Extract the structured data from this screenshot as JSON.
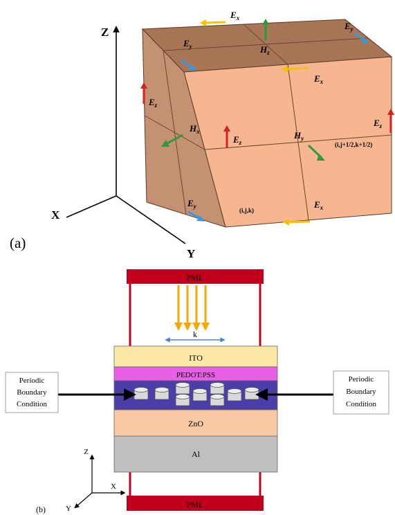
{
  "panel_a": {
    "label": "(a)",
    "axes": {
      "x": "X",
      "y": "Y",
      "z": "Z"
    },
    "fields": {
      "ex": "E",
      "ex_sub": "x",
      "ey": "E",
      "ey_sub": "y",
      "ez": "E",
      "ez_sub": "z",
      "hx": "H",
      "hx_sub": "x",
      "hy": "H",
      "hy_sub": "y",
      "hz": "H",
      "hz_sub": "z"
    },
    "index_origin": "(i,j,k)",
    "index_half": "(i,j+1/2,k+1/2)",
    "colors": {
      "cube_front": "#f6b690",
      "cube_side": "#c49272",
      "cube_top": "#a87656",
      "ex_arrow": "#f2c400",
      "ey_arrow": "#3a9ad9",
      "ez_arrow": "#d42020",
      "h_arrow": "#2e9a3e"
    }
  },
  "panel_b": {
    "label": "(b)",
    "pml_top": "PML",
    "pml_bottom": "PML",
    "wave_vector": "k",
    "layers": [
      {
        "name": "ITO",
        "color": "#fde9a6"
      },
      {
        "name": "PEDOT:PSS",
        "color": "#e85ee6"
      },
      {
        "name": "",
        "color": "#4a3fa8"
      },
      {
        "name": "ZnO",
        "color": "#f9c9a3"
      },
      {
        "name": "Al",
        "color": "#bfbfbf"
      }
    ],
    "boundary_left": [
      "Periodic",
      "Boundary",
      "Condition"
    ],
    "boundary_right": [
      "Periodic",
      "Boundary",
      "Condition"
    ],
    "axes": {
      "x": "X",
      "y": "Y",
      "z": "Z"
    },
    "colors": {
      "pml": "#c0001c",
      "frame": "#c0001c",
      "incident": "#f5a800",
      "k_arrow": "#4a86c6"
    }
  }
}
